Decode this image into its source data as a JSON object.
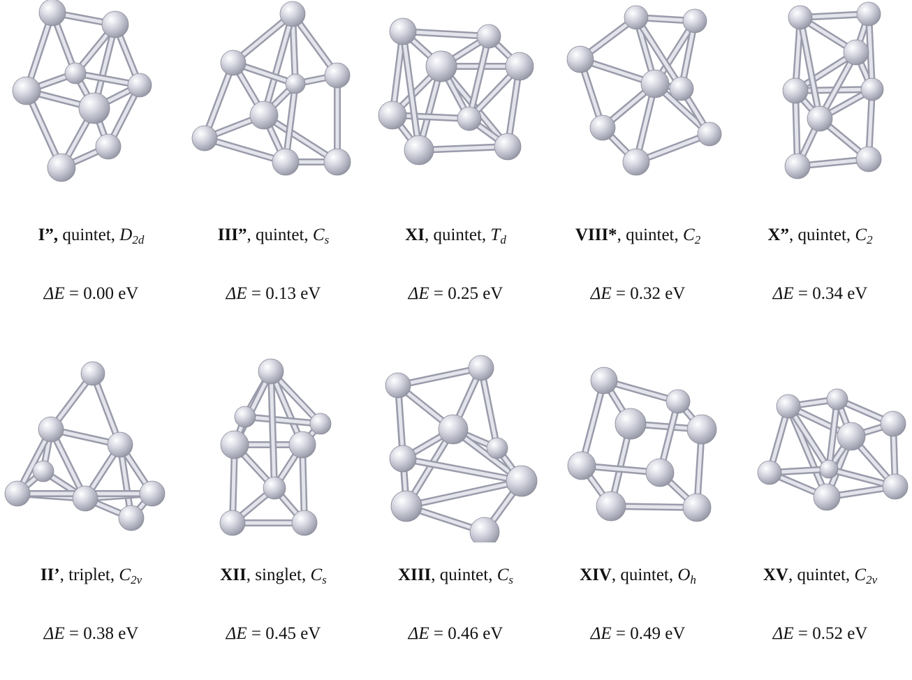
{
  "clusters": [
    {
      "id": "I”,",
      "spin": "quintet",
      "sym": "D",
      "symsub": "2d",
      "energy_var": "ΔE",
      "energy_val": "= 0.00 eV"
    },
    {
      "id": "III”",
      "spin": "quintet",
      "sym": "C",
      "symsub": "s",
      "energy_var": "ΔE",
      "energy_val": "= 0.13 eV"
    },
    {
      "id": "XI",
      "spin": "quintet",
      "sym": "T",
      "symsub": "d",
      "energy_var": "ΔE",
      "energy_val": "= 0.25 eV"
    },
    {
      "id": "VIII*",
      "spin": "quintet",
      "sym": "C",
      "symsub": "2",
      "energy_var": "ΔE",
      "energy_val": "= 0.32 eV"
    },
    {
      "id": "X”",
      "spin": "quintet",
      "sym": "C",
      "symsub": "2",
      "energy_var": "ΔE",
      "energy_val": "= 0.34 eV"
    },
    {
      "id": "II’",
      "spin": "triplet",
      "sym": "C",
      "symsub": "2v",
      "energy_var": "ΔE",
      "energy_val": "= 0.38 eV"
    },
    {
      "id": "XII",
      "spin": "singlet",
      "sym": "C",
      "symsub": "s",
      "energy_var": "ΔE",
      "energy_val": "= 0.45 eV"
    },
    {
      "id": "XIII",
      "spin": "quintet",
      "sym": "C",
      "symsub": "s",
      "energy_var": "ΔE",
      "energy_val": "= 0.46 eV"
    },
    {
      "id": "XIV",
      "spin": "quintet",
      "sym": "O",
      "symsub": "h",
      "energy_var": "ΔE",
      "energy_val": "= 0.49 eV"
    },
    {
      "id": "XV",
      "spin": "quintet",
      "sym": "C",
      "symsub": "2v",
      "energy_var": "ΔE",
      "energy_val": "= 0.52 eV"
    }
  ]
}
